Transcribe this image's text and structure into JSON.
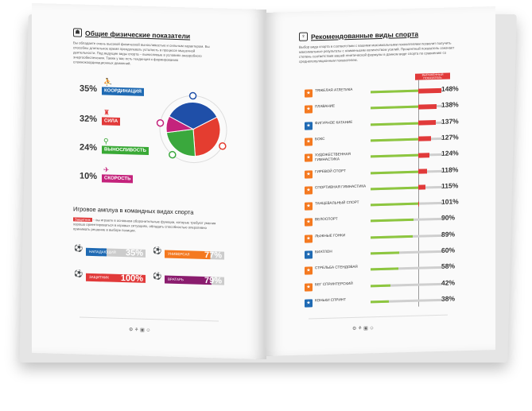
{
  "left": {
    "title": "Общие физические показатели",
    "intro": "Вы обладаете очень высокой физической выносливостью и сильным характером. Вы способны длительное время преодолевать усталость в процессе мышечной деятельности. Под ведущие виды спорта – выносливые в условиях анаэробного энергообеспечения. Также у вас есть тенденция к формированию сложнокоординационных движений.",
    "stats": [
      {
        "value": "35%",
        "label": "КООРДИНАЦИЯ",
        "color": "#1f6ab3"
      },
      {
        "value": "32%",
        "label": "СИЛА",
        "color": "#e13a3a"
      },
      {
        "value": "24%",
        "label": "ВЫНОСЛИВОСТЬ",
        "color": "#39a935"
      },
      {
        "value": "10%",
        "label": "СКОРОСТЬ",
        "color": "#c4237c"
      }
    ],
    "pie": [
      {
        "name": "КООРДИНАЦИЯ",
        "value": 35,
        "color": "#1f4fa8"
      },
      {
        "name": "СИЛА",
        "value": 32,
        "color": "#e43d30"
      },
      {
        "name": "ВЫНОСЛИВОСТЬ",
        "value": 24,
        "color": "#3aa83d"
      },
      {
        "name": "СКОРОСТЬ",
        "value": 10,
        "color": "#c4237c"
      }
    ],
    "roles_title": "Игровое амплуа в командных видах спорта",
    "roles_tag": "Защитник",
    "roles_text": "– вы играете в основном оборонительные функции, которые требуют умения хорошо ориентироваться в игровых ситуациях, обладать способностью оперативно принимать решение в выборе позиции.",
    "roles": [
      {
        "label": "НАПАДАЮЩИЙ",
        "value": "35%",
        "fill": 0.35,
        "color": "#1f6ab3"
      },
      {
        "label": "УНИВЕРСАЛ",
        "value": "77%",
        "fill": 0.77,
        "color": "#f47920"
      },
      {
        "label": "ЗАЩИТНИК",
        "value": "100%",
        "fill": 1.0,
        "color": "#e13a3a"
      },
      {
        "label": "ВРАТАРЬ",
        "value": "79%",
        "fill": 0.79,
        "color": "#8a1c6e"
      }
    ]
  },
  "right": {
    "title": "Рекомендованные виды спорта",
    "intro": "Выбор вида спорта в соответствии с вашими максимальными показателями позволит получить максимальные результаты с наименьшим количеством усилий. Процентный показатель означает степень соответствия вашей генетической формулы в данном виде спорта по сравнению со среднепопуляционным показателем.",
    "marker_label": "ВЫРАЖЕННЫЙ ПОКАЗАТЕЛЬ",
    "sports": [
      {
        "name": "ТЯЖЕЛАЯ АТЛЕТИКА",
        "value": "148%",
        "pct": 148
      },
      {
        "name": "ПЛАВАНИЕ",
        "value": "138%",
        "pct": 138
      },
      {
        "name": "ФИГУРНОЕ КАТАНИЕ",
        "value": "137%",
        "pct": 137
      },
      {
        "name": "БОКС",
        "value": "127%",
        "pct": 127
      },
      {
        "name": "ХУДОЖЕСТВЕННАЯ ГИМНАСТИКА",
        "value": "124%",
        "pct": 124
      },
      {
        "name": "ГИРЕВОЙ СПОРТ",
        "value": "118%",
        "pct": 118
      },
      {
        "name": "СПОРТИВНАЯ ГИМНАСТИКА",
        "value": "115%",
        "pct": 115
      },
      {
        "name": "ТАНЦЕВАЛЬНЫЙ СПОРТ",
        "value": "101%",
        "pct": 101
      },
      {
        "name": "ВЕЛОСПОРТ",
        "value": "90%",
        "pct": 90
      },
      {
        "name": "ЛЫЖНЫЕ ГОНКИ",
        "value": "89%",
        "pct": 89
      },
      {
        "name": "БИАТЛОН",
        "value": "60%",
        "pct": 60
      },
      {
        "name": "СТРЕЛЬБА СТЕНДОВАЯ",
        "value": "58%",
        "pct": 58
      },
      {
        "name": "БЕГ СПРИНТЕРСКИЙ",
        "value": "42%",
        "pct": 42
      },
      {
        "name": "КОНЬКИ СПРИНТ",
        "value": "38%",
        "pct": 38
      }
    ]
  }
}
